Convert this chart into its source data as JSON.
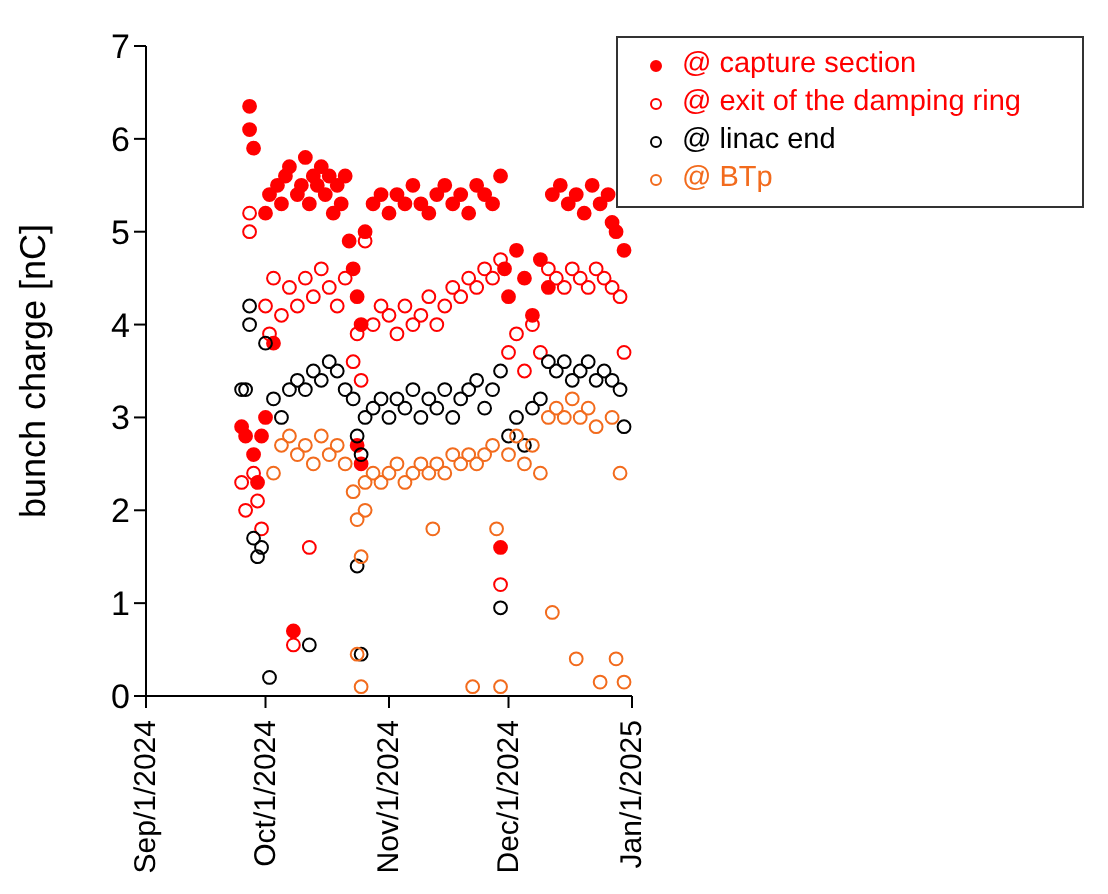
{
  "chart_data": {
    "type": "scatter",
    "ylabel": "bunch charge [nC]",
    "xlim": [
      "2024-09-01",
      "2025-01-01"
    ],
    "xticks": [
      {
        "value": "2024-09-01",
        "label": "Sep/1/2024"
      },
      {
        "value": "2024-10-01",
        "label": "Oct/1/2024"
      },
      {
        "value": "2024-11-01",
        "label": "Nov/1/2024"
      },
      {
        "value": "2024-12-01",
        "label": "Dec/1/2024"
      },
      {
        "value": "2025-01-01",
        "label": "Jan/1/2025"
      }
    ],
    "ylim": [
      0,
      7
    ],
    "yticks": [
      0,
      1,
      2,
      3,
      4,
      5,
      6,
      7
    ],
    "grid": false,
    "legend": "top right",
    "marker": "circle",
    "series": [
      {
        "name": "@ capture section",
        "color": "#ff0000",
        "x": [
          "2024-09-25",
          "2024-09-26",
          "2024-09-27",
          "2024-09-27",
          "2024-09-28",
          "2024-09-28",
          "2024-09-29",
          "2024-09-30",
          "2024-10-01",
          "2024-10-01",
          "2024-10-02",
          "2024-10-03",
          "2024-10-04",
          "2024-10-05",
          "2024-10-06",
          "2024-10-07",
          "2024-10-08",
          "2024-10-09",
          "2024-10-10",
          "2024-10-11",
          "2024-10-12",
          "2024-10-13",
          "2024-10-14",
          "2024-10-15",
          "2024-10-16",
          "2024-10-17",
          "2024-10-18",
          "2024-10-19",
          "2024-10-20",
          "2024-10-21",
          "2024-10-22",
          "2024-10-23",
          "2024-10-24",
          "2024-10-24",
          "2024-10-25",
          "2024-10-25",
          "2024-10-26",
          "2024-10-28",
          "2024-10-30",
          "2024-11-01",
          "2024-11-03",
          "2024-11-05",
          "2024-11-07",
          "2024-11-09",
          "2024-11-11",
          "2024-11-13",
          "2024-11-15",
          "2024-11-17",
          "2024-11-19",
          "2024-11-21",
          "2024-11-23",
          "2024-11-25",
          "2024-11-27",
          "2024-11-29",
          "2024-11-29",
          "2024-11-30",
          "2024-12-01",
          "2024-12-03",
          "2024-12-05",
          "2024-12-07",
          "2024-12-09",
          "2024-12-11",
          "2024-12-12",
          "2024-12-14",
          "2024-12-16",
          "2024-12-18",
          "2024-12-20",
          "2024-12-22",
          "2024-12-24",
          "2024-12-26",
          "2024-12-27",
          "2024-12-28",
          "2024-12-30"
        ],
        "values": [
          2.9,
          2.8,
          6.35,
          6.1,
          5.9,
          2.6,
          2.3,
          2.8,
          3.0,
          5.2,
          5.4,
          3.8,
          5.5,
          5.3,
          5.6,
          5.7,
          0.7,
          5.4,
          5.5,
          5.8,
          5.3,
          5.6,
          5.5,
          5.7,
          5.4,
          5.6,
          5.2,
          5.5,
          5.3,
          5.6,
          4.9,
          4.6,
          4.3,
          2.7,
          2.5,
          4.0,
          5.0,
          5.3,
          5.4,
          5.2,
          5.4,
          5.3,
          5.5,
          5.3,
          5.2,
          5.4,
          5.5,
          5.3,
          5.4,
          5.2,
          5.5,
          5.4,
          5.3,
          5.6,
          1.6,
          4.6,
          4.3,
          4.8,
          4.5,
          4.1,
          4.7,
          4.4,
          5.4,
          5.5,
          5.3,
          5.4,
          5.2,
          5.5,
          5.3,
          5.4,
          5.1,
          5.0,
          4.8
        ]
      },
      {
        "name": "@ exit of the damping ring",
        "color": "#ff0000",
        "x": [
          "2024-09-25",
          "2024-09-26",
          "2024-09-27",
          "2024-09-27",
          "2024-09-28",
          "2024-09-29",
          "2024-09-30",
          "2024-10-01",
          "2024-10-02",
          "2024-10-03",
          "2024-10-05",
          "2024-10-07",
          "2024-10-08",
          "2024-10-09",
          "2024-10-11",
          "2024-10-12",
          "2024-10-13",
          "2024-10-15",
          "2024-10-17",
          "2024-10-19",
          "2024-10-21",
          "2024-10-23",
          "2024-10-24",
          "2024-10-25",
          "2024-10-26",
          "2024-10-28",
          "2024-10-30",
          "2024-11-01",
          "2024-11-03",
          "2024-11-05",
          "2024-11-07",
          "2024-11-09",
          "2024-11-11",
          "2024-11-13",
          "2024-11-15",
          "2024-11-17",
          "2024-11-19",
          "2024-11-21",
          "2024-11-23",
          "2024-11-25",
          "2024-11-27",
          "2024-11-29",
          "2024-11-29",
          "2024-12-01",
          "2024-12-03",
          "2024-12-05",
          "2024-12-07",
          "2024-12-09",
          "2024-12-11",
          "2024-12-13",
          "2024-12-15",
          "2024-12-17",
          "2024-12-19",
          "2024-12-21",
          "2024-12-23",
          "2024-12-25",
          "2024-12-27",
          "2024-12-29",
          "2024-12-30"
        ],
        "values": [
          2.3,
          2.0,
          5.2,
          5.0,
          2.4,
          2.1,
          1.8,
          4.2,
          3.9,
          4.5,
          4.1,
          4.4,
          0.55,
          4.2,
          4.5,
          1.6,
          4.3,
          4.6,
          4.4,
          4.2,
          4.5,
          3.6,
          3.9,
          3.4,
          4.9,
          4.0,
          4.2,
          4.1,
          3.9,
          4.2,
          4.0,
          4.1,
          4.3,
          4.0,
          4.2,
          4.4,
          4.3,
          4.5,
          4.4,
          4.6,
          4.5,
          4.7,
          1.2,
          3.7,
          3.9,
          3.5,
          4.0,
          3.7,
          4.6,
          4.5,
          4.4,
          4.6,
          4.5,
          4.4,
          4.6,
          4.5,
          4.4,
          4.3,
          3.7
        ]
      },
      {
        "name": "@ linac end",
        "color": "#000000",
        "x": [
          "2024-09-25",
          "2024-09-26",
          "2024-09-27",
          "2024-09-27",
          "2024-09-28",
          "2024-09-29",
          "2024-09-30",
          "2024-10-01",
          "2024-10-02",
          "2024-10-03",
          "2024-10-05",
          "2024-10-07",
          "2024-10-12",
          "2024-10-09",
          "2024-10-11",
          "2024-10-13",
          "2024-10-15",
          "2024-10-17",
          "2024-10-19",
          "2024-10-21",
          "2024-10-23",
          "2024-10-24",
          "2024-10-24",
          "2024-10-25",
          "2024-10-25",
          "2024-10-26",
          "2024-10-28",
          "2024-10-30",
          "2024-11-01",
          "2024-11-03",
          "2024-11-05",
          "2024-11-07",
          "2024-11-09",
          "2024-11-11",
          "2024-11-13",
          "2024-11-15",
          "2024-11-17",
          "2024-11-19",
          "2024-11-21",
          "2024-11-23",
          "2024-11-25",
          "2024-11-27",
          "2024-11-29",
          "2024-11-29",
          "2024-12-01",
          "2024-12-03",
          "2024-12-05",
          "2024-12-07",
          "2024-12-09",
          "2024-12-11",
          "2024-12-13",
          "2024-12-15",
          "2024-12-17",
          "2024-12-19",
          "2024-12-21",
          "2024-12-23",
          "2024-12-25",
          "2024-12-27",
          "2024-12-29",
          "2024-12-30"
        ],
        "values": [
          3.3,
          3.3,
          4.2,
          4.0,
          1.7,
          1.5,
          1.6,
          3.8,
          0.2,
          3.2,
          3.0,
          3.3,
          0.55,
          3.4,
          3.3,
          3.5,
          3.4,
          3.6,
          3.5,
          3.3,
          3.2,
          2.8,
          1.4,
          2.6,
          0.45,
          3.0,
          3.1,
          3.2,
          3.0,
          3.2,
          3.1,
          3.3,
          3.0,
          3.2,
          3.1,
          3.3,
          3.0,
          3.2,
          3.3,
          3.4,
          3.1,
          3.3,
          3.5,
          0.95,
          2.8,
          3.0,
          2.7,
          3.1,
          3.2,
          3.6,
          3.5,
          3.6,
          3.4,
          3.5,
          3.6,
          3.4,
          3.5,
          3.4,
          3.3,
          2.9
        ]
      },
      {
        "name": "@ BTp",
        "color": "#f26b1d",
        "x": [
          "2024-10-03",
          "2024-10-05",
          "2024-10-07",
          "2024-10-09",
          "2024-10-11",
          "2024-10-13",
          "2024-10-15",
          "2024-10-17",
          "2024-10-19",
          "2024-10-21",
          "2024-10-23",
          "2024-10-24",
          "2024-10-24",
          "2024-10-25",
          "2024-10-25",
          "2024-10-26",
          "2024-10-26",
          "2024-10-28",
          "2024-10-30",
          "2024-11-01",
          "2024-11-03",
          "2024-11-05",
          "2024-11-07",
          "2024-11-09",
          "2024-11-11",
          "2024-11-12",
          "2024-11-13",
          "2024-11-15",
          "2024-11-17",
          "2024-11-19",
          "2024-11-21",
          "2024-11-22",
          "2024-11-23",
          "2024-11-25",
          "2024-11-27",
          "2024-11-28",
          "2024-11-29",
          "2024-12-01",
          "2024-12-03",
          "2024-12-05",
          "2024-12-07",
          "2024-12-09",
          "2024-12-11",
          "2024-12-12",
          "2024-12-13",
          "2024-12-15",
          "2024-12-17",
          "2024-12-18",
          "2024-12-19",
          "2024-12-21",
          "2024-12-23",
          "2024-12-24",
          "2024-12-27",
          "2024-12-28",
          "2024-12-29",
          "2024-12-30"
        ],
        "values": [
          2.4,
          2.7,
          2.8,
          2.6,
          2.7,
          2.5,
          2.8,
          2.6,
          2.7,
          2.5,
          2.2,
          1.9,
          0.45,
          1.5,
          0.1,
          2.0,
          2.3,
          2.4,
          2.3,
          2.4,
          2.5,
          2.3,
          2.4,
          2.5,
          2.4,
          1.8,
          2.5,
          2.4,
          2.6,
          2.5,
          2.6,
          0.1,
          2.5,
          2.6,
          2.7,
          1.8,
          0.1,
          2.6,
          2.8,
          2.5,
          2.7,
          2.4,
          3.0,
          0.9,
          3.1,
          3.0,
          3.2,
          0.4,
          3.0,
          3.1,
          2.9,
          0.15,
          3.0,
          0.4,
          2.4,
          0.15
        ]
      }
    ]
  }
}
